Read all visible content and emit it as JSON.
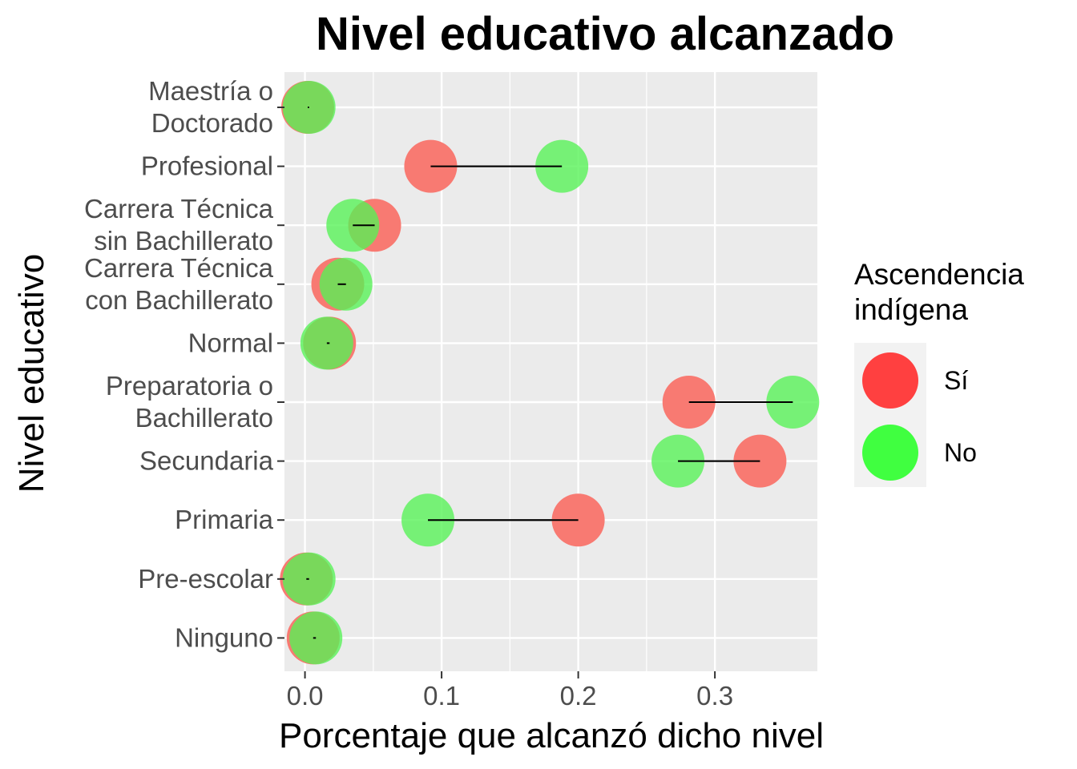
{
  "chart_data": {
    "type": "dumbbell",
    "title": "Nivel educativo alcanzado",
    "xlabel": "Porcentaje que alcanzó dicho nivel",
    "ylabel": "Nivel educativo",
    "xlim": [
      -0.015,
      0.375
    ],
    "xticks": [
      "0.0",
      "0.1",
      "0.2",
      "0.3"
    ],
    "xtick_values": [
      0.0,
      0.1,
      0.2,
      0.3
    ],
    "grid": true,
    "legend": {
      "title": [
        "Ascendencia",
        "indígena"
      ],
      "placement": "right",
      "entries": [
        {
          "label": "Sí",
          "color": "#ff4040"
        },
        {
          "label": "No",
          "color": "#40ff40"
        }
      ]
    },
    "colors": {
      "si": "#f8766d",
      "no": "#55f255",
      "panel": "#ebebeb",
      "grid": "#ffffff",
      "segment": "#000000"
    },
    "categories": [
      {
        "lines": [
          "Maestría o",
          "Doctorado"
        ],
        "si": 0.002,
        "no": 0.003
      },
      {
        "lines": [
          "Profesional"
        ],
        "si": 0.092,
        "no": 0.188
      },
      {
        "lines": [
          "Carrera Técnica",
          "sin Bachillerato"
        ],
        "si": 0.051,
        "no": 0.035
      },
      {
        "lines": [
          "Carrera Técnica",
          "con Bachillerato"
        ],
        "si": 0.024,
        "no": 0.03
      },
      {
        "lines": [
          "Normal"
        ],
        "si": 0.018,
        "no": 0.016
      },
      {
        "lines": [
          "Preparatoria o",
          "Bachillerato"
        ],
        "si": 0.281,
        "no": 0.357
      },
      {
        "lines": [
          "Secundaria"
        ],
        "si": 0.333,
        "no": 0.273
      },
      {
        "lines": [
          "Primaria"
        ],
        "si": 0.2,
        "no": 0.09
      },
      {
        "lines": [
          "Pre-escolar"
        ],
        "si": 0.001,
        "no": 0.003
      },
      {
        "lines": [
          "Ninguno"
        ],
        "si": 0.006,
        "no": 0.008
      }
    ]
  }
}
